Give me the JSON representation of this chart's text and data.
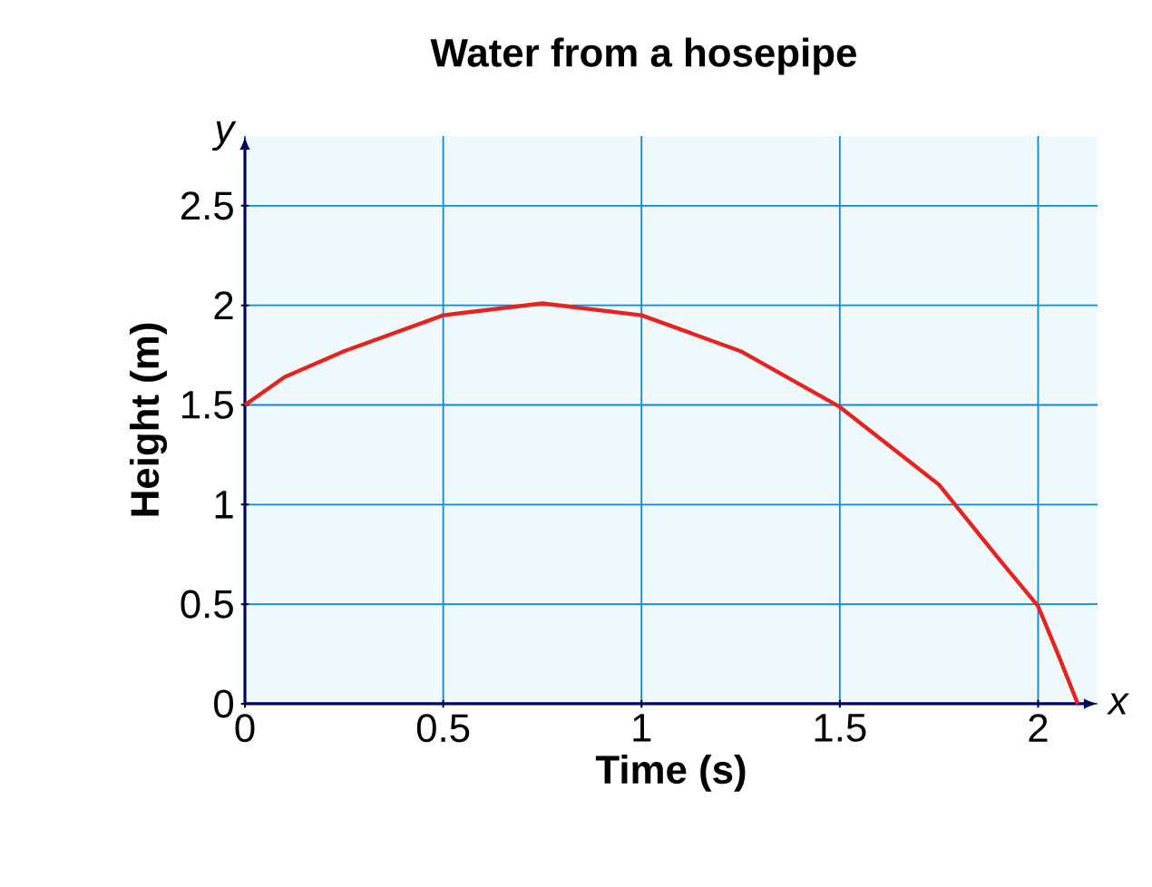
{
  "chart_data": {
    "type": "line",
    "title": "Water from a hosepipe",
    "xlabel": "Time (s)",
    "ylabel": "Height (m)",
    "x": [
      0,
      0.1,
      0.25,
      0.5,
      0.75,
      1,
      1.25,
      1.5,
      1.75,
      1.9,
      2,
      2.05,
      2.1
    ],
    "series": [
      {
        "color": "#e8231e",
        "values": [
          1.5,
          1.64,
          1.77,
          1.95,
          2.01,
          1.95,
          1.77,
          1.49,
          1.1,
          0.73,
          0.49,
          0.25,
          0
        ]
      }
    ],
    "xlim": [
      0,
      2.15
    ],
    "ylim": [
      0,
      2.85
    ],
    "xticks": [
      0,
      0.5,
      1,
      1.5,
      2
    ],
    "yticks": [
      0,
      0.5,
      1,
      1.5,
      2,
      2.5
    ],
    "grid": true,
    "marker": "none",
    "line_style": "solid",
    "annotations": [
      "x",
      "y"
    ]
  }
}
